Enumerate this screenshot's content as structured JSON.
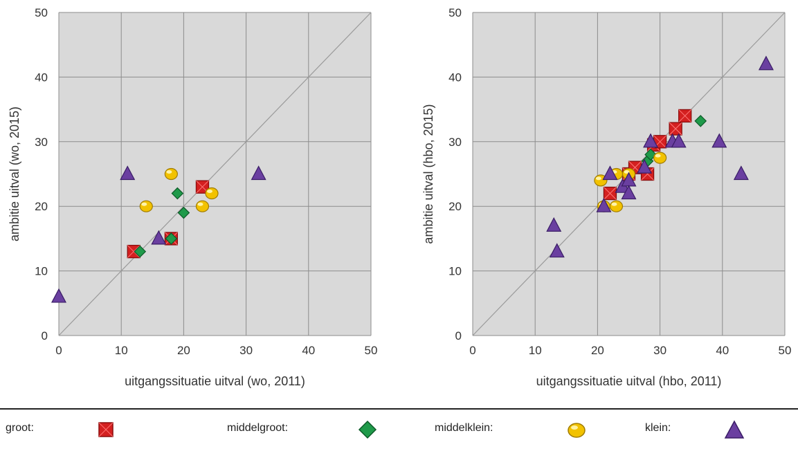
{
  "colors": {
    "groot": "#d42020",
    "middelgroot": "#1f9a4a",
    "middelklein": "#f2c200",
    "klein": "#6a3fa0",
    "plot_bg": "#d9d9d9",
    "grid": "#8c8c8c",
    "diagonal": "#9a9a9a"
  },
  "legend": {
    "groot_label": "groot:",
    "middelgroot_label": "middelgroot:",
    "middelklein_label": "middelklein:",
    "klein_label": "klein:"
  },
  "chart_data": [
    {
      "type": "scatter",
      "title": "",
      "xlabel": "uitgangssituatie uitval (wo, 2011)",
      "ylabel": "ambitie  uitval (wo, 2015)",
      "xlim": [
        0,
        50
      ],
      "ylim": [
        0,
        50
      ],
      "xticks": [
        0,
        10,
        20,
        30,
        40,
        50
      ],
      "yticks": [
        0,
        10,
        20,
        30,
        40,
        50
      ],
      "grid": true,
      "diagonal": true,
      "series": [
        {
          "name": "groot",
          "marker": "square",
          "points": [
            [
              12,
              13
            ],
            [
              18,
              15
            ],
            [
              23,
              23
            ]
          ]
        },
        {
          "name": "middelgroot",
          "marker": "diamond",
          "points": [
            [
              13,
              13
            ],
            [
              18,
              15
            ],
            [
              19,
              22
            ],
            [
              20,
              19
            ]
          ]
        },
        {
          "name": "middelklein",
          "marker": "circle",
          "points": [
            [
              14,
              20
            ],
            [
              18,
              25
            ],
            [
              23,
              20
            ],
            [
              24.5,
              22
            ]
          ]
        },
        {
          "name": "klein",
          "marker": "triangle",
          "points": [
            [
              0,
              6
            ],
            [
              11,
              25
            ],
            [
              16,
              15
            ],
            [
              32,
              25
            ]
          ]
        }
      ]
    },
    {
      "type": "scatter",
      "title": "",
      "xlabel": "uitgangssituatie uitval (hbo, 2011)",
      "ylabel": "ambitie  uitval (hbo, 2015)",
      "xlim": [
        0,
        50
      ],
      "ylim": [
        0,
        50
      ],
      "xticks": [
        0,
        10,
        20,
        30,
        40,
        50
      ],
      "yticks": [
        0,
        10,
        20,
        30,
        40,
        50
      ],
      "grid": true,
      "diagonal": true,
      "series": [
        {
          "name": "groot",
          "marker": "square",
          "points": [
            [
              22,
              22
            ],
            [
              25,
              25
            ],
            [
              26,
              26
            ],
            [
              28,
              25
            ],
            [
              29,
              29.5
            ],
            [
              30,
              30
            ],
            [
              32.5,
              32
            ],
            [
              34,
              34
            ]
          ]
        },
        {
          "name": "middelgroot",
          "marker": "diamond",
          "points": [
            [
              28,
              27
            ],
            [
              28.5,
              28
            ],
            [
              36.5,
              33.2
            ]
          ]
        },
        {
          "name": "middelklein",
          "marker": "circle",
          "points": [
            [
              20.5,
              24
            ],
            [
              21,
              20
            ],
            [
              23,
              20
            ],
            [
              23,
              25
            ],
            [
              25,
              25
            ],
            [
              30,
              27.5
            ]
          ]
        },
        {
          "name": "klein",
          "marker": "triangle",
          "points": [
            [
              13,
              17
            ],
            [
              13.5,
              13
            ],
            [
              21,
              20
            ],
            [
              22,
              25
            ],
            [
              24,
              23
            ],
            [
              25,
              24
            ],
            [
              25,
              22
            ],
            [
              27.5,
              26
            ],
            [
              28.5,
              30
            ],
            [
              32,
              30
            ],
            [
              33,
              30
            ],
            [
              39.5,
              30
            ],
            [
              43,
              25
            ],
            [
              47,
              42
            ]
          ]
        }
      ]
    }
  ]
}
